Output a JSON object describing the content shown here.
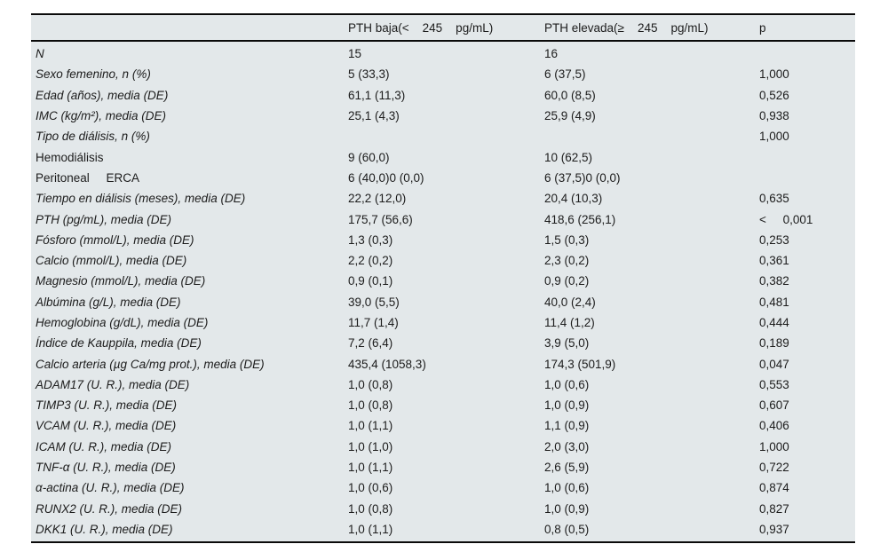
{
  "table": {
    "columns": [
      "",
      "PTH baja(<    245    pg/mL)",
      "PTH elevada(≥    245    pg/mL)",
      "p"
    ],
    "rows": [
      {
        "label": "N",
        "italic": true,
        "indent": false,
        "baja": "15",
        "elevada": "16",
        "p": ""
      },
      {
        "label": "Sexo femenino, n (%)",
        "italic": true,
        "indent": false,
        "baja": "5 (33,3)",
        "elevada": "6 (37,5)",
        "p": "1,000"
      },
      {
        "label": "Edad (años), media (DE)",
        "italic": true,
        "indent": false,
        "baja": "61,1 (11,3)",
        "elevada": "60,0 (8,5)",
        "p": "0,526"
      },
      {
        "label": "IMC (kg/m²), media (DE)",
        "italic": true,
        "indent": false,
        "baja": "25,1 (4,3)",
        "elevada": "25,9 (4,9)",
        "p": "0,938"
      },
      {
        "label": "Tipo de diálisis, n (%)",
        "italic": true,
        "indent": false,
        "baja": "",
        "elevada": "",
        "p": "1,000"
      },
      {
        "label": "Hemodiálisis",
        "italic": false,
        "indent": true,
        "baja": "9 (60,0)",
        "elevada": "10 (62,5)",
        "p": ""
      },
      {
        "label": "Peritoneal     ERCA",
        "italic": false,
        "indent": true,
        "baja": "6 (40,0)0 (0,0)",
        "elevada": "6 (37,5)0 (0,0)",
        "p": ""
      },
      {
        "label": "Tiempo en diálisis (meses), media (DE)",
        "italic": true,
        "indent": false,
        "baja": "22,2 (12,0)",
        "elevada": "20,4 (10,3)",
        "p": "0,635"
      },
      {
        "label": "PTH (pg/mL), media (DE)",
        "italic": true,
        "indent": false,
        "baja": "175,7 (56,6)",
        "elevada": "418,6 (256,1)",
        "p": "<     0,001"
      },
      {
        "label": "Fósforo (mmol/L), media (DE)",
        "italic": true,
        "indent": false,
        "baja": "1,3 (0,3)",
        "elevada": "1,5 (0,3)",
        "p": "0,253"
      },
      {
        "label": "Calcio (mmol/L), media (DE)",
        "italic": true,
        "indent": false,
        "baja": "2,2 (0,2)",
        "elevada": "2,3 (0,2)",
        "p": "0,361"
      },
      {
        "label": "Magnesio (mmol/L), media (DE)",
        "italic": true,
        "indent": false,
        "baja": "0,9 (0,1)",
        "elevada": "0,9 (0,2)",
        "p": "0,382"
      },
      {
        "label": "Albúmina (g/L), media (DE)",
        "italic": true,
        "indent": false,
        "baja": "39,0 (5,5)",
        "elevada": "40,0 (2,4)",
        "p": "0,481"
      },
      {
        "label": "Hemoglobina (g/dL), media (DE)",
        "italic": true,
        "indent": false,
        "baja": "11,7 (1,4)",
        "elevada": "11,4 (1,2)",
        "p": "0,444"
      },
      {
        "label": "Índice de Kauppila, media (DE)",
        "italic": true,
        "indent": false,
        "baja": "7,2 (6,4)",
        "elevada": "3,9 (5,0)",
        "p": "0,189"
      },
      {
        "label": "Calcio arteria (µg Ca/mg prot.), media (DE)",
        "italic": true,
        "indent": false,
        "baja": "435,4 (1058,3)",
        "elevada": "174,3 (501,9)",
        "p": "0,047"
      },
      {
        "label": "ADAM17 (U. R.), media (DE)",
        "italic": true,
        "indent": false,
        "baja": "1,0 (0,8)",
        "elevada": "1,0 (0,6)",
        "p": "0,553"
      },
      {
        "label": "TIMP3 (U. R.), media (DE)",
        "italic": true,
        "indent": false,
        "baja": "1,0 (0,8)",
        "elevada": "1,0 (0,9)",
        "p": "0,607"
      },
      {
        "label": "VCAM (U. R.), media (DE)",
        "italic": true,
        "indent": false,
        "baja": "1,0 (1,1)",
        "elevada": "1,1 (0,9)",
        "p": "0,406"
      },
      {
        "label": "ICAM (U. R.), media (DE)",
        "italic": true,
        "indent": false,
        "baja": "1,0 (1,0)",
        "elevada": "2,0 (3,0)",
        "p": "1,000"
      },
      {
        "label": "TNF-α (U. R.), media (DE)",
        "italic": true,
        "indent": false,
        "baja": "1,0 (1,1)",
        "elevada": "2,6 (5,9)",
        "p": "0,722"
      },
      {
        "label": "α-actina (U. R.), media (DE)",
        "italic": true,
        "indent": false,
        "baja": "1,0 (0,6)",
        "elevada": "1,0 (0,6)",
        "p": "0,874"
      },
      {
        "label": "RUNX2 (U. R.), media (DE)",
        "italic": true,
        "indent": false,
        "baja": "1,0 (0,8)",
        "elevada": "1,0 (0,9)",
        "p": "0,827"
      },
      {
        "label": "DKK1 (U. R.), media (DE)",
        "italic": true,
        "indent": false,
        "baja": "1,0 (1,1)",
        "elevada": "0,8 (0,5)",
        "p": "0,937"
      }
    ],
    "colors": {
      "table_background": "#e3e8ea",
      "rule": "#0a0a0a",
      "text": "#1c1c1c",
      "page_background": "#ffffff"
    }
  }
}
